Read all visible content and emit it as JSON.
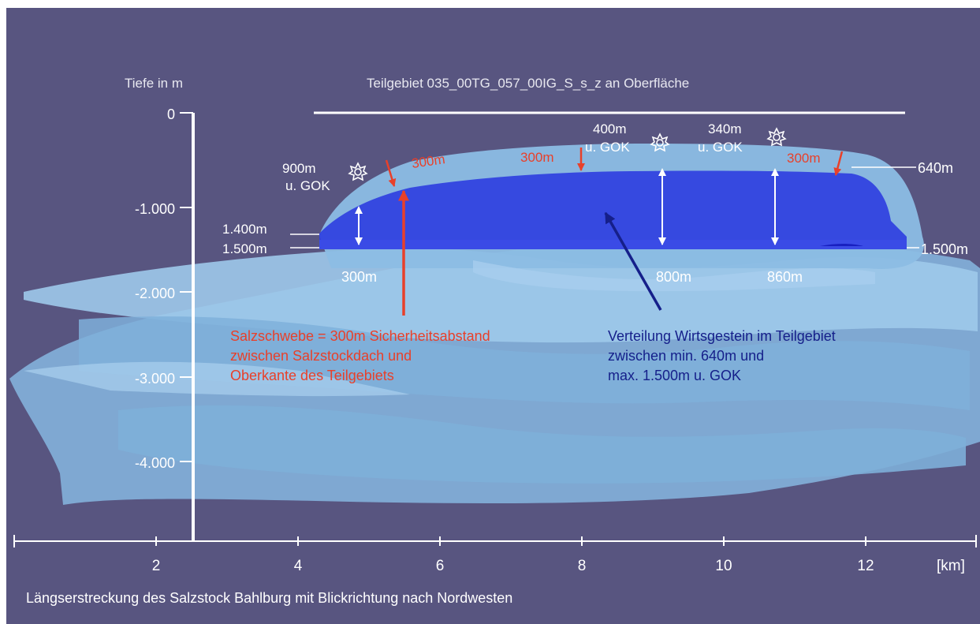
{
  "axes": {
    "y_label": "Tiefe in m",
    "y_ticks": [
      "0",
      "-1.000",
      "-2.000",
      "-3.000",
      "-4.000"
    ],
    "x_ticks": [
      "2",
      "4",
      "6",
      "8",
      "10",
      "12"
    ],
    "x_unit": "[km]"
  },
  "title": "Teilgebiet 035_00TG_057_00IG_S_s_z an Oberfläche",
  "caption": "Längserstreckung des Salzstock Bahlburg mit Blickrichtung nach Nordwesten",
  "top_depths": [
    {
      "value": "900m",
      "unit": "u. GOK"
    },
    {
      "value": "400m",
      "unit": "u. GOK"
    },
    {
      "value": "340m",
      "unit": "u. GOK"
    }
  ],
  "red_markers": [
    "300m",
    "300m",
    "300m"
  ],
  "right_labels": {
    "top": "640m",
    "bottom": "1.500m"
  },
  "left_labels": {
    "top": "1.400m",
    "bottom": "1.500m"
  },
  "thickness": [
    "300m",
    "800m",
    "860m"
  ],
  "note_red": [
    "Salzschwebe = 300m Sicherheitsabstand",
    "zwischen Salzstockdach und",
    "Oberkante des Teilgebiets"
  ],
  "note_blue": [
    "Verteilung Wirtsgestein im Teilgebiet",
    "zwischen min. 640m und",
    "max. 1.500m u. GOK"
  ],
  "colors": {
    "background": "#585580",
    "salt_dome": "#8fbfe6",
    "host_rock": "#2f3fe0",
    "red_annotation": "#e8402a",
    "blue_annotation": "#151f8a",
    "axis": "#ffffff"
  }
}
